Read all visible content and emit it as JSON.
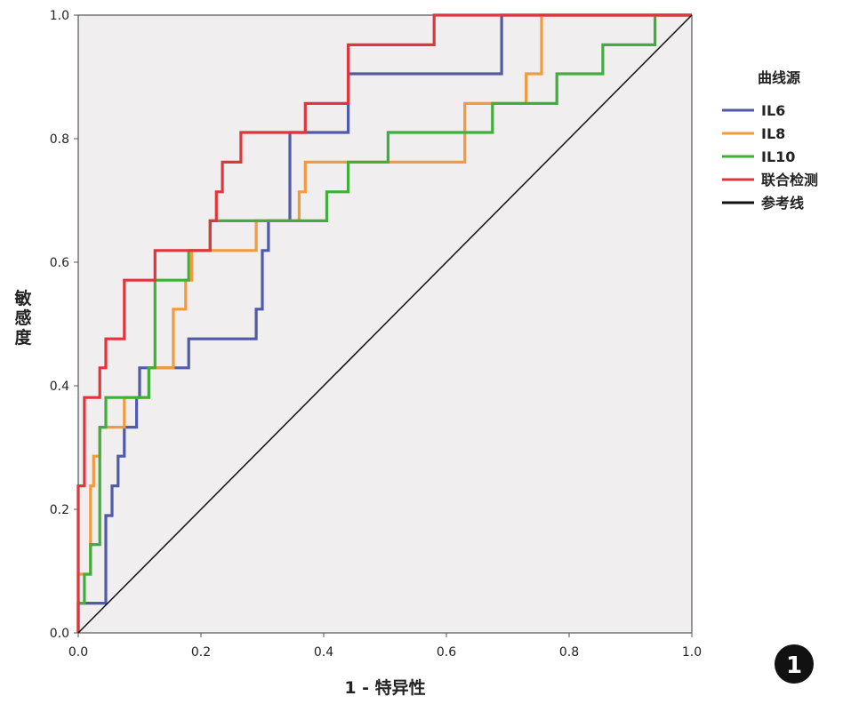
{
  "chart_data": {
    "type": "line",
    "xlabel": "1 - 特异性",
    "ylabel": "敏感度",
    "xlim": [
      0,
      1
    ],
    "ylim": [
      0,
      1
    ],
    "xticks": [
      "0.0",
      "0.2",
      "0.4",
      "0.6",
      "0.8",
      "1.0"
    ],
    "yticks": [
      "0.0",
      "0.2",
      "0.4",
      "0.6",
      "0.8",
      "1.0"
    ],
    "legend_title": "曲线源",
    "legend_position": "right",
    "panel_label": "1",
    "series": [
      {
        "name": "IL6",
        "color": "#4f5aa8",
        "x": [
          0,
          0,
          0.045,
          0.045,
          0.055,
          0.055,
          0.065,
          0.065,
          0.075,
          0.075,
          0.085,
          0.085,
          0.095,
          0.095,
          0.1,
          0.1,
          0.12,
          0.12,
          0.18,
          0.18,
          0.29,
          0.29,
          0.3,
          0.3,
          0.31,
          0.31,
          0.345,
          0.345,
          0.44,
          0.44,
          0.69,
          0.69,
          1.0
        ],
        "y": [
          0,
          0.048,
          0.048,
          0.19,
          0.19,
          0.238,
          0.238,
          0.286,
          0.286,
          0.333,
          0.333,
          0.333,
          0.333,
          0.381,
          0.381,
          0.429,
          0.429,
          0.429,
          0.429,
          0.476,
          0.476,
          0.524,
          0.524,
          0.619,
          0.619,
          0.667,
          0.667,
          0.81,
          0.81,
          0.905,
          0.905,
          1.0,
          1.0
        ]
      },
      {
        "name": "IL8",
        "color": "#f39a3c",
        "x": [
          0,
          0,
          0.02,
          0.02,
          0.025,
          0.025,
          0.035,
          0.035,
          0.075,
          0.075,
          0.115,
          0.115,
          0.125,
          0.125,
          0.155,
          0.155,
          0.175,
          0.175,
          0.185,
          0.185,
          0.29,
          0.29,
          0.36,
          0.36,
          0.37,
          0.37,
          0.44,
          0.44,
          0.63,
          0.63,
          0.675,
          0.675,
          0.73,
          0.73,
          0.755,
          0.755,
          1.0
        ],
        "y": [
          0,
          0.095,
          0.095,
          0.238,
          0.238,
          0.286,
          0.286,
          0.333,
          0.333,
          0.381,
          0.381,
          0.429,
          0.429,
          0.429,
          0.429,
          0.524,
          0.524,
          0.571,
          0.571,
          0.619,
          0.619,
          0.667,
          0.667,
          0.714,
          0.714,
          0.762,
          0.762,
          0.762,
          0.762,
          0.857,
          0.857,
          0.857,
          0.857,
          0.905,
          0.905,
          1.0,
          1.0
        ]
      },
      {
        "name": "IL10",
        "color": "#3fae3a",
        "x": [
          0,
          0,
          0.01,
          0.01,
          0.02,
          0.02,
          0.035,
          0.035,
          0.045,
          0.045,
          0.115,
          0.115,
          0.125,
          0.125,
          0.18,
          0.18,
          0.215,
          0.215,
          0.405,
          0.405,
          0.44,
          0.44,
          0.505,
          0.505,
          0.675,
          0.675,
          0.78,
          0.78,
          0.79,
          0.79,
          0.855,
          0.855,
          0.94,
          0.94,
          1.0
        ],
        "y": [
          0,
          0.048,
          0.048,
          0.095,
          0.095,
          0.143,
          0.143,
          0.333,
          0.333,
          0.381,
          0.381,
          0.429,
          0.429,
          0.571,
          0.571,
          0.619,
          0.619,
          0.667,
          0.667,
          0.714,
          0.714,
          0.762,
          0.762,
          0.81,
          0.81,
          0.857,
          0.857,
          0.905,
          0.905,
          0.905,
          0.905,
          0.952,
          0.952,
          1.0,
          1.0
        ]
      },
      {
        "name": "联合检测",
        "color": "#e0353c",
        "x": [
          0,
          0,
          0.01,
          0.01,
          0.025,
          0.025,
          0.035,
          0.035,
          0.045,
          0.045,
          0.075,
          0.075,
          0.125,
          0.125,
          0.215,
          0.215,
          0.225,
          0.225,
          0.235,
          0.235,
          0.25,
          0.25,
          0.265,
          0.265,
          0.37,
          0.37,
          0.44,
          0.44,
          0.58,
          0.58,
          1.0
        ],
        "y": [
          0,
          0.238,
          0.238,
          0.381,
          0.381,
          0.381,
          0.381,
          0.429,
          0.429,
          0.476,
          0.476,
          0.571,
          0.571,
          0.619,
          0.619,
          0.667,
          0.667,
          0.714,
          0.714,
          0.762,
          0.762,
          0.762,
          0.762,
          0.81,
          0.81,
          0.857,
          0.857,
          0.952,
          0.952,
          1.0,
          1.0
        ]
      },
      {
        "name": "参考线",
        "color": "#111111",
        "x": [
          0,
          1
        ],
        "y": [
          0,
          1
        ]
      }
    ]
  }
}
